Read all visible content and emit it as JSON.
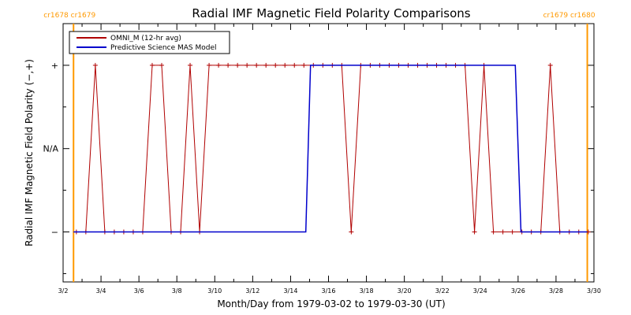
{
  "chart_data": {
    "type": "line",
    "title": "Radial IMF Magnetic Field Polarity Comparisons",
    "xlabel": "Month/Day from 1979-03-02 to 1979-03-30 (UT)",
    "ylabel": "Radial IMF Magnetic Field Polarity (−,+)",
    "xlim": [
      0,
      28
    ],
    "ylim": [
      -1.6,
      1.5
    ],
    "x_tick_values": [
      0,
      2,
      4,
      6,
      8,
      10,
      12,
      14,
      16,
      18,
      20,
      22,
      24,
      26,
      28
    ],
    "x_tick_labels": [
      "3/2",
      "3/4",
      "3/6",
      "3/8",
      "3/10",
      "3/12",
      "3/14",
      "3/16",
      "3/18",
      "3/20",
      "3/22",
      "3/24",
      "3/26",
      "3/28",
      "3/30"
    ],
    "y_tick_values": [
      1,
      0,
      -1
    ],
    "y_tick_labels": [
      "+",
      "N/A",
      "−"
    ],
    "carrington_markers": [
      {
        "x": 0.55,
        "label": "cr1678 cr1679",
        "color": "#ff9900",
        "label_anchor": "start"
      },
      {
        "x": 27.65,
        "label": "cr1679 cr1680",
        "color": "#ff9900",
        "label_anchor": "end"
      }
    ],
    "legend_position": "top-left",
    "series": [
      {
        "name": "OMNI_M (12-hr avg)",
        "color": "#b00000",
        "markers": true,
        "x": [
          0.7,
          1.2,
          1.7,
          2.2,
          2.7,
          3.2,
          3.7,
          4.2,
          4.7,
          5.2,
          5.7,
          6.2,
          6.7,
          7.2,
          7.7,
          8.2,
          8.7,
          9.2,
          9.7,
          10.2,
          10.7,
          11.2,
          11.7,
          12.2,
          12.7,
          13.2,
          13.7,
          14.2,
          14.7,
          15.2,
          15.7,
          16.2,
          16.7,
          17.2,
          17.7,
          18.2,
          18.7,
          19.2,
          19.7,
          20.2,
          20.7,
          21.2,
          21.7,
          22.2,
          22.7,
          23.2,
          23.7,
          24.2,
          24.7,
          25.2,
          25.7,
          26.2,
          26.7,
          27.2,
          27.7
        ],
        "y": [
          -1,
          -1,
          1,
          -1,
          -1,
          -1,
          -1,
          -1,
          1,
          1,
          -1,
          -1,
          1,
          -1,
          1,
          1,
          1,
          1,
          1,
          1,
          1,
          1,
          1,
          1,
          1,
          1,
          1,
          1,
          1,
          -1,
          1,
          1,
          1,
          1,
          1,
          1,
          1,
          1,
          1,
          1,
          1,
          1,
          -1,
          1,
          -1,
          -1,
          -1,
          -1,
          -1,
          -1,
          1,
          -1,
          -1,
          -1,
          -1
        ]
      },
      {
        "name": "Predictive Science MAS Model",
        "color": "#0000cc",
        "markers": false,
        "x": [
          0.55,
          12.8,
          13.05,
          23.85,
          24.15,
          27.65
        ],
        "y": [
          -1,
          -1,
          1,
          1,
          -1,
          -1
        ]
      }
    ]
  }
}
